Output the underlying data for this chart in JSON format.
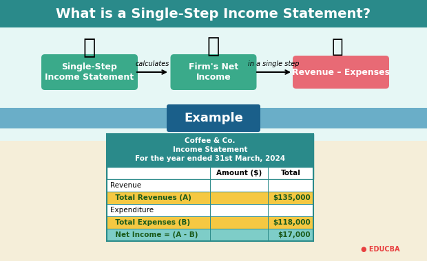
{
  "title": "What is a Single-Step Income Statement?",
  "title_bg": "#2a8a8a",
  "title_color": "#ffffff",
  "top_bg": "#e6f7f5",
  "bottom_bg": "#f5eed9",
  "example_bar_bg": "#6aaec8",
  "example_label": "Example",
  "example_label_bg": "#1a5f8a",
  "box1_text": "Single-Step\nIncome Statement",
  "box1_bg": "#3aaa8a",
  "box2_text": "Firm's Net\nIncome",
  "box2_bg": "#3aaa8a",
  "box3_text": "Revenue – Expenses",
  "box3_bg": "#e86a75",
  "arrow1_label": "calculates",
  "arrow2_label": "in a single step",
  "table_header_bg": "#2a8a8a",
  "table_header_color": "#ffffff",
  "table_header_lines": [
    "Coffee & Co.",
    "Income Statement",
    "For the year ended 31st March, 2024"
  ],
  "col_headers": [
    "",
    "Amount ($)",
    "Total"
  ],
  "table_rows": [
    {
      "label": "Revenue",
      "amount": "",
      "total": "",
      "bg": "#ffffff",
      "label_bold": false
    },
    {
      "label": "  Total Revenues (A)",
      "amount": "",
      "total": "$135,000",
      "bg": "#f5c842",
      "label_bold": true
    },
    {
      "label": "Expenditure",
      "amount": "",
      "total": "",
      "bg": "#ffffff",
      "label_bold": false
    },
    {
      "label": "  Total Expenses (B)",
      "amount": "",
      "total": "$118,000",
      "bg": "#f5c842",
      "label_bold": true
    },
    {
      "label": "  Net Income = (A - B)",
      "amount": "",
      "total": "$17,000",
      "bg": "#7ecdc8",
      "label_bold": true
    }
  ],
  "table_border_color": "#2a8a8a",
  "educba_color": "#e84040",
  "educba_text": "EDUCBA"
}
